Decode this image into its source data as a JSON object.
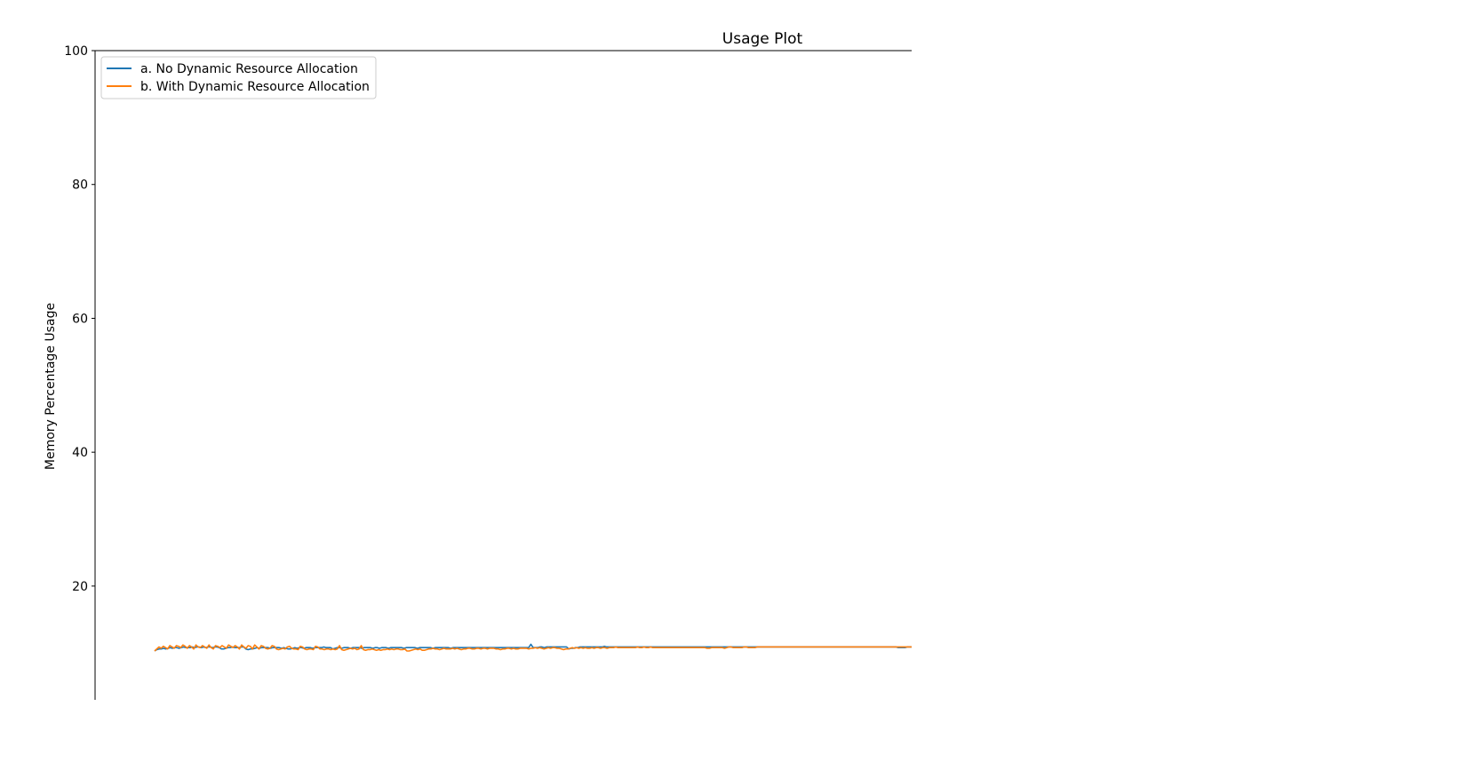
{
  "chart_data": {
    "type": "line",
    "title": "Usage Plot",
    "xlabel": "",
    "ylabel": "Memory Percentage Usage",
    "ylim": [
      3,
      100
    ],
    "yticks": [
      20,
      40,
      60,
      80,
      100
    ],
    "xlim": [
      0,
      335
    ],
    "grid": false,
    "legend_position": "top-left",
    "series": [
      {
        "name": "a. No Dynamic Resource Allocation",
        "color": "#1f77b4",
        "values": [
          10.3,
          10.5,
          10.6,
          10.6,
          10.7,
          10.6,
          10.7,
          10.8,
          10.7,
          10.8,
          10.8,
          10.7,
          10.8,
          10.9,
          10.8,
          10.8,
          10.8,
          10.9,
          10.8,
          10.9,
          10.9,
          10.8,
          10.9,
          10.8,
          10.9,
          10.9,
          10.8,
          10.9,
          10.9,
          10.8,
          10.6,
          10.6,
          10.7,
          10.8,
          10.8,
          10.9,
          10.8,
          10.8,
          10.8,
          10.9,
          10.9,
          10.6,
          10.5,
          10.6,
          10.6,
          10.7,
          10.8,
          10.7,
          10.8,
          10.8,
          10.8,
          10.8,
          10.7,
          10.8,
          10.8,
          10.8,
          10.8,
          10.7,
          10.8,
          10.7,
          10.6,
          10.6,
          10.7,
          10.8,
          10.7,
          10.8,
          10.8,
          10.7,
          10.8,
          10.8,
          10.8,
          10.7,
          10.8,
          10.8,
          10.8,
          10.8,
          10.9,
          10.8,
          10.8,
          10.8,
          10.6,
          10.7,
          10.8,
          10.8,
          10.7,
          10.8,
          10.8,
          10.8,
          10.7,
          10.8,
          10.8,
          10.8,
          10.8,
          10.7,
          10.8,
          10.8,
          10.8,
          10.8,
          10.7,
          10.8,
          10.8,
          10.7,
          10.8,
          10.8,
          10.8,
          10.7,
          10.8,
          10.8,
          10.8,
          10.8,
          10.8,
          10.8,
          10.7,
          10.8,
          10.8,
          10.8,
          10.8,
          10.8,
          10.7,
          10.8,
          10.8,
          10.8,
          10.8,
          10.8,
          10.8,
          10.7,
          10.8,
          10.8,
          10.8,
          10.8,
          10.8,
          10.8,
          10.8,
          10.7,
          10.8,
          10.8,
          10.8,
          10.8,
          10.8,
          10.8,
          10.8,
          10.8,
          10.8,
          10.8,
          10.8,
          10.8,
          10.8,
          10.8,
          10.8,
          10.8,
          10.8,
          10.8,
          10.8,
          10.8,
          10.8,
          10.8,
          10.8,
          10.8,
          10.8,
          10.8,
          10.8,
          10.8,
          10.8,
          10.8,
          10.8,
          10.8,
          10.8,
          10.8,
          10.8,
          11.3,
          10.8,
          10.8,
          10.8,
          10.9,
          10.9,
          10.8,
          10.9,
          10.9,
          10.9,
          10.9,
          10.9,
          10.9,
          10.9,
          10.9,
          10.9,
          10.9,
          10.6,
          10.7,
          10.7,
          10.8,
          10.8,
          10.9,
          10.9,
          10.9,
          10.9,
          10.9,
          10.9,
          10.9,
          10.9,
          10.9,
          10.9,
          10.9,
          11.0,
          10.9,
          10.9,
          10.9,
          10.9,
          10.9,
          10.9,
          10.9,
          10.9,
          10.9,
          10.9,
          10.9,
          10.9,
          10.9,
          10.9,
          10.9,
          10.9,
          10.9,
          10.9,
          10.9,
          10.9,
          10.9,
          10.9,
          10.9,
          10.9,
          10.9,
          10.9,
          10.9,
          10.9,
          10.9,
          10.9,
          10.9,
          10.9,
          10.9,
          10.9,
          10.9,
          10.9,
          10.9,
          10.9,
          10.9,
          10.9,
          10.9,
          10.9,
          10.9,
          10.9,
          10.9,
          10.9,
          10.9,
          10.9,
          10.9,
          10.9,
          10.9,
          10.9,
          10.9,
          10.9,
          10.9,
          10.9,
          10.9,
          10.9,
          10.9,
          10.9,
          10.9,
          10.9,
          10.9,
          10.9,
          10.9,
          10.9,
          10.9,
          10.9,
          10.9,
          10.9,
          10.9,
          10.9,
          10.9,
          10.9,
          10.9,
          10.9,
          10.9,
          10.9,
          10.9,
          10.9,
          10.9,
          10.9,
          10.9,
          10.9,
          10.9,
          10.9,
          10.9,
          10.9,
          10.9,
          10.9,
          10.9,
          10.9,
          10.9,
          10.9,
          10.9,
          10.9,
          10.9,
          10.9,
          10.9,
          10.9,
          10.9,
          10.9,
          10.9,
          10.9,
          10.9,
          10.9,
          10.9,
          10.9,
          10.9,
          10.9,
          10.9,
          10.9,
          10.9,
          10.9,
          10.9,
          10.9,
          10.9,
          10.9,
          10.9,
          10.9,
          10.9,
          10.9,
          10.9,
          10.9,
          10.9,
          10.9,
          10.9,
          10.9,
          10.9,
          10.9,
          10.9,
          10.8,
          10.8,
          10.8,
          10.8,
          10.9,
          10.9,
          10.9
        ]
      },
      {
        "name": "b. With Dynamic Resource Allocation",
        "color": "#ff7f0e",
        "values": [
          10.3,
          10.6,
          10.9,
          10.7,
          11.0,
          10.8,
          10.6,
          11.1,
          10.9,
          10.7,
          11.1,
          11.0,
          10.8,
          11.2,
          11.0,
          10.7,
          11.1,
          10.9,
          10.6,
          11.2,
          10.9,
          10.8,
          11.1,
          10.9,
          10.7,
          11.2,
          10.8,
          10.6,
          11.1,
          11.0,
          10.8,
          11.1,
          10.9,
          10.7,
          11.2,
          11.0,
          10.8,
          11.1,
          10.9,
          10.6,
          11.2,
          10.9,
          10.7,
          11.1,
          11.0,
          10.6,
          11.2,
          10.9,
          10.6,
          11.1,
          11.0,
          10.7,
          10.6,
          10.7,
          11.1,
          11.0,
          10.6,
          10.5,
          10.6,
          10.7,
          10.6,
          10.9,
          11.0,
          10.7,
          10.6,
          10.6,
          10.5,
          11.0,
          10.9,
          10.6,
          10.5,
          10.6,
          10.6,
          10.5,
          11.0,
          10.9,
          10.6,
          10.6,
          10.5,
          10.6,
          10.6,
          10.5,
          10.6,
          10.5,
          10.6,
          11.1,
          10.5,
          10.4,
          10.5,
          10.6,
          10.7,
          10.6,
          10.7,
          10.5,
          10.6,
          11.1,
          10.5,
          10.4,
          10.5,
          10.5,
          10.6,
          10.5,
          10.4,
          10.5,
          10.4,
          10.5,
          10.5,
          10.6,
          10.5,
          10.6,
          10.5,
          10.6,
          10.6,
          10.5,
          10.5,
          10.6,
          10.3,
          10.3,
          10.4,
          10.5,
          10.6,
          10.5,
          10.6,
          10.4,
          10.4,
          10.5,
          10.6,
          10.6,
          10.7,
          10.6,
          10.6,
          10.5,
          10.6,
          10.7,
          10.6,
          10.6,
          10.6,
          10.7,
          10.6,
          10.7,
          10.6,
          10.5,
          10.6,
          10.6,
          10.7,
          10.7,
          10.6,
          10.6,
          10.7,
          10.7,
          10.6,
          10.7,
          10.7,
          10.6,
          10.7,
          10.7,
          10.7,
          10.6,
          10.6,
          10.5,
          10.6,
          10.6,
          10.7,
          10.7,
          10.6,
          10.7,
          10.6,
          10.6,
          10.7,
          10.7,
          10.7,
          10.7,
          10.6,
          10.7,
          10.7,
          10.8,
          10.7,
          10.8,
          10.7,
          10.6,
          10.7,
          10.8,
          10.7,
          10.8,
          10.8,
          10.7,
          10.7,
          10.6,
          10.5,
          10.6,
          10.6,
          10.7,
          10.8,
          10.7,
          10.8,
          10.7,
          10.8,
          10.7,
          10.8,
          10.7,
          10.7,
          10.8,
          10.7,
          10.8,
          10.8,
          10.7,
          10.8,
          10.8,
          10.7,
          10.8,
          10.8,
          10.8,
          10.9,
          10.8,
          10.8,
          10.8,
          10.8,
          10.8,
          10.8,
          10.8,
          10.8,
          10.8,
          10.9,
          10.8,
          10.8,
          10.9,
          10.8,
          10.8,
          10.9,
          10.8,
          10.8,
          10.8,
          10.8,
          10.8,
          10.8,
          10.8,
          10.8,
          10.8,
          10.8,
          10.8,
          10.8,
          10.8,
          10.8,
          10.8,
          10.8,
          10.8,
          10.8,
          10.8,
          10.8,
          10.8,
          10.8,
          10.8,
          10.8,
          10.8,
          10.7,
          10.7,
          10.8,
          10.8,
          10.8,
          10.8,
          10.8,
          10.8,
          10.7,
          10.8,
          10.9,
          10.9,
          10.8,
          10.8,
          10.8,
          10.8,
          10.8,
          10.9,
          10.9,
          10.8,
          10.8,
          10.8,
          10.8,
          10.9,
          10.9,
          10.9,
          10.9,
          10.9,
          10.9,
          10.9,
          10.9,
          10.9,
          10.9,
          10.9,
          10.9,
          10.9,
          10.9,
          10.9,
          10.9,
          10.9,
          10.9,
          10.9,
          10.9,
          10.9,
          10.9,
          10.9,
          10.9,
          10.9,
          10.9,
          10.9,
          10.9,
          10.9,
          10.9,
          10.9,
          10.9,
          10.9,
          10.9,
          10.9,
          10.9,
          10.9,
          10.9,
          10.9,
          10.9,
          10.9,
          10.9,
          10.9,
          10.9,
          10.9,
          10.9,
          10.9,
          10.9,
          10.9,
          10.9,
          10.9,
          10.9,
          10.9,
          10.9,
          10.9,
          10.9,
          10.9,
          10.9,
          10.9,
          10.9,
          10.9,
          10.9,
          10.9,
          10.9,
          10.9,
          10.9,
          10.9,
          10.9,
          10.9,
          10.9,
          10.9,
          10.9
        ]
      }
    ]
  }
}
